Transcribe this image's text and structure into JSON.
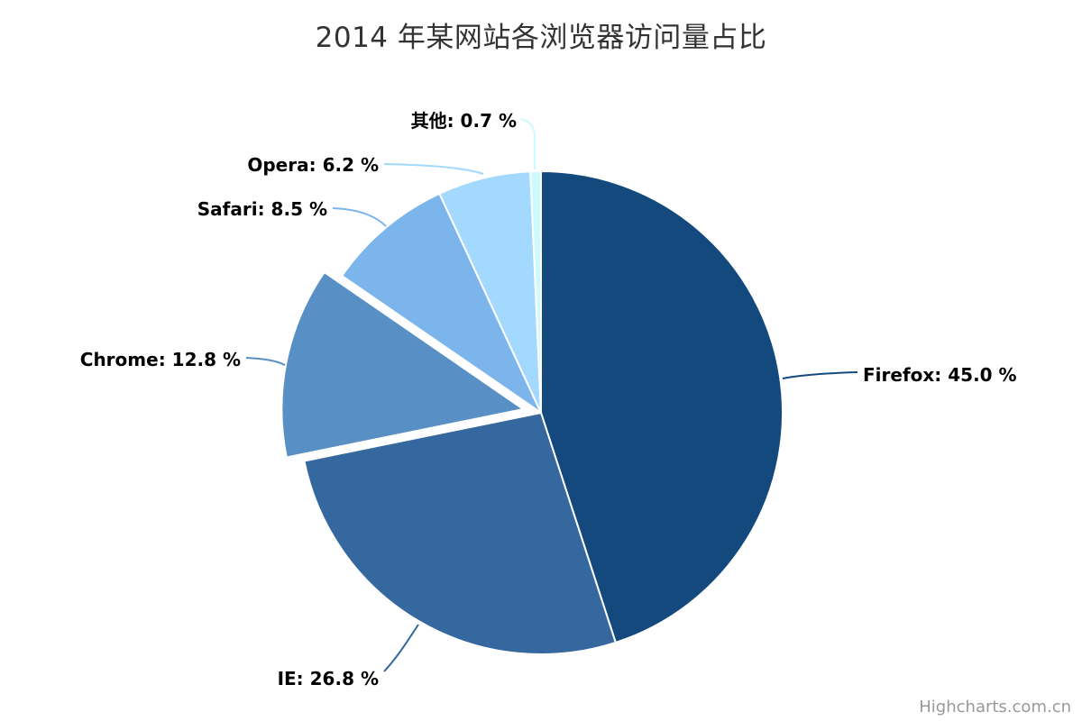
{
  "chart_data": {
    "type": "pie",
    "title": "2014 年某网站各浏览器访问量占比",
    "legend": "none",
    "start_angle_deg": 0,
    "direction": "clockwise",
    "label_format": "{name}: {value} %",
    "border_color": "#ffffff",
    "points": [
      {
        "id": "firefox",
        "name": "Firefox",
        "value": 45.0,
        "color": "#14497E",
        "sliced": false
      },
      {
        "id": "ie",
        "name": "IE",
        "value": 26.8,
        "color": "#34689F",
        "sliced": false
      },
      {
        "id": "chrome",
        "name": "Chrome",
        "value": 12.8,
        "color": "#5890C6",
        "sliced": true
      },
      {
        "id": "safari",
        "name": "Safari",
        "value": 8.5,
        "color": "#7CB5EC",
        "sliced": false
      },
      {
        "id": "opera",
        "name": "Opera",
        "value": 6.2,
        "color": "#A3D9FF",
        "sliced": false
      },
      {
        "id": "other",
        "name": "其他",
        "value": 0.7,
        "color": "#CDFAFF",
        "sliced": false
      }
    ],
    "title_color": "#333333",
    "label_color": "#000000"
  },
  "credits": {
    "text": "Highcharts.com.cn"
  }
}
